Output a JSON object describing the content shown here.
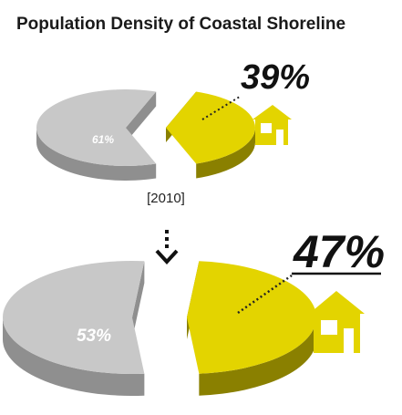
{
  "chart_data": {
    "type": "pie",
    "title": "Population Density of Coastal Shoreline",
    "charts": [
      {
        "year_label": "[2010]",
        "slices": [
          {
            "label": "61%",
            "value": 61
          },
          {
            "label": "39%",
            "value": 39
          }
        ]
      },
      {
        "year_label": "",
        "slices": [
          {
            "label": "53%",
            "value": 53
          },
          {
            "label": "47%",
            "value": 47
          }
        ]
      }
    ]
  },
  "colors": {
    "gray_top": "#c8c8c8",
    "gray_side": "#8f8f8f",
    "yellow_top": "#e3d400",
    "yellow_side": "#8a8000",
    "text": "#111111"
  },
  "icons": {
    "house": "house-icon",
    "arrow": "dotted-down-arrow-icon"
  }
}
